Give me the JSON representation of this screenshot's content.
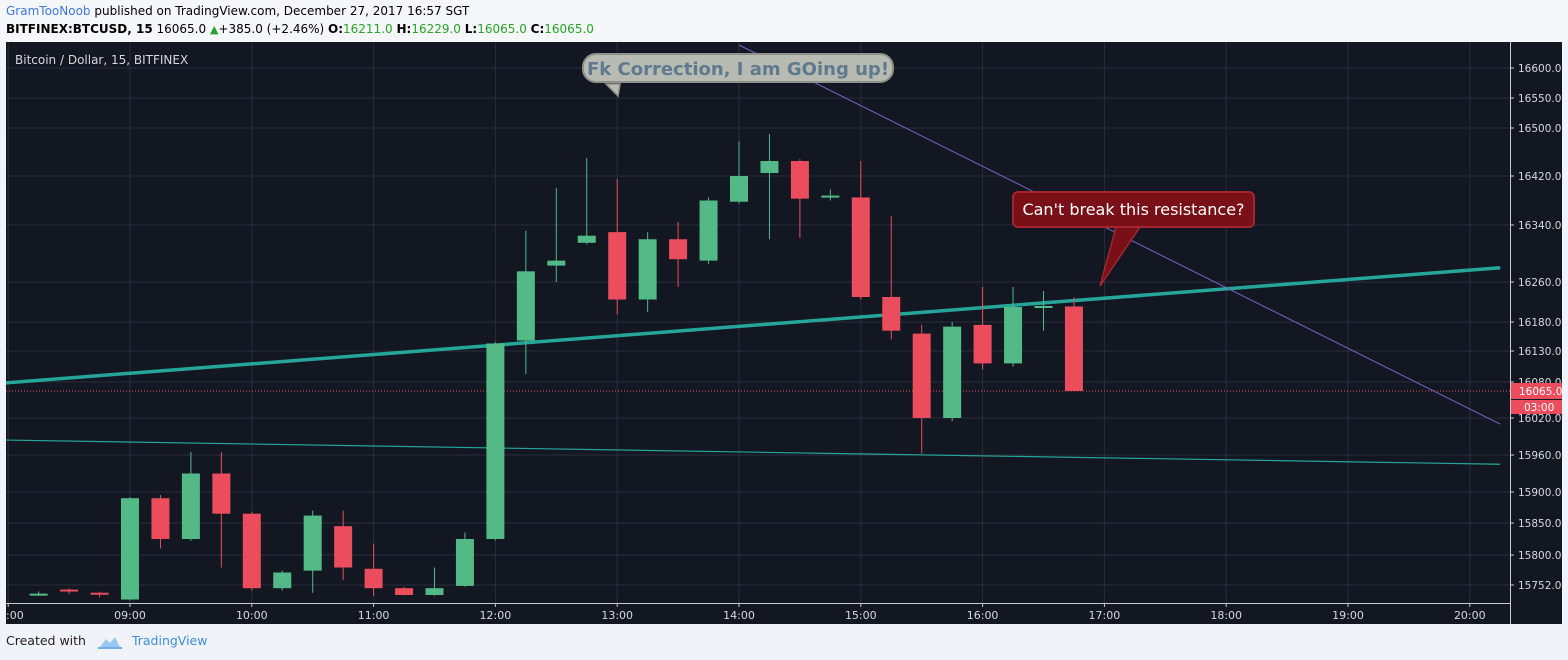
{
  "header": {
    "author": "GramTooNoob",
    "published_text": "published on TradingView.com, December 27, 2017 16:57 SGT",
    "symbol": "BITFINEX:BTCUSD, 15",
    "last": "16065.0",
    "change": "+385.0 (+2.46%)",
    "o_label": "O:",
    "o_val": "16211.0",
    "h_label": "H:",
    "h_val": "16229.0",
    "l_label": "L:",
    "l_val": "16065.0",
    "c_label": "C:",
    "c_val": "16065.0"
  },
  "chart_title": "Bitcoin / Dollar, 15, BITFINEX",
  "annotations": {
    "bubble_top": "Fk Correction, I am GOing up!",
    "bubble_resistance": "Can't break this resistance?"
  },
  "footer": {
    "created_with": "Created with",
    "brand": "TradingView"
  },
  "colors": {
    "background": "#131722",
    "grid": "#2a2e39",
    "up": "#53b987",
    "down": "#eb4d5c",
    "trendline": "#26a69a",
    "diagonal": "#7b61c9",
    "price_line": "#eb4d5c",
    "text": "#d6d8de"
  },
  "chart_data": {
    "type": "candlestick",
    "title": "Bitcoin / Dollar, 15, BITFINEX",
    "interval_minutes": 15,
    "x_ticks": [
      ":00",
      "09:00",
      "10:00",
      "11:00",
      "12:00",
      "13:00",
      "14:00",
      "15:00",
      "16:00",
      "17:00",
      "18:00",
      "19:00",
      "20:00"
    ],
    "y_ticks": [
      15752,
      15800,
      15850,
      15900,
      15960,
      16020,
      16080,
      16130,
      16180,
      16260,
      16340,
      16420,
      16500,
      16550,
      16600
    ],
    "y_tick_labels": [
      "15752.0",
      "15800.0",
      "15850.0",
      "15900.0",
      "15960.0",
      "16020.0",
      "16080.0",
      "16130.0",
      "16180.0",
      "16260.0",
      "16340.0",
      "16420.0",
      "16500.0",
      "16550.0",
      "16600.0"
    ],
    "y_range": [
      15730,
      16640
    ],
    "grid": true,
    "last_price": 16065.0,
    "last_price_label": "16065.0",
    "countdown_label": "03:00",
    "candles": [
      {
        "time": "08:15",
        "o": 15733,
        "h": 15738,
        "l": 15728,
        "c": 15733
      },
      {
        "time": "08:30",
        "o": 15742,
        "h": 15745,
        "l": 15732,
        "c": 15740
      },
      {
        "time": "08:45",
        "o": 15735,
        "h": 15737,
        "l": 15725,
        "c": 15733
      },
      {
        "time": "09:00",
        "o": 15720,
        "h": 15892,
        "l": 15718,
        "c": 15890
      },
      {
        "time": "09:15",
        "o": 15890,
        "h": 15895,
        "l": 15810,
        "c": 15825
      },
      {
        "time": "09:30",
        "o": 15825,
        "h": 15965,
        "l": 15822,
        "c": 15930
      },
      {
        "time": "09:45",
        "o": 15930,
        "h": 15965,
        "l": 15780,
        "c": 15865
      },
      {
        "time": "10:00",
        "o": 15865,
        "h": 15868,
        "l": 15740,
        "c": 15745
      },
      {
        "time": "10:15",
        "o": 15745,
        "h": 15775,
        "l": 15740,
        "c": 15772
      },
      {
        "time": "10:30",
        "o": 15775,
        "h": 15870,
        "l": 15735,
        "c": 15862
      },
      {
        "time": "10:45",
        "o": 15845,
        "h": 15870,
        "l": 15760,
        "c": 15780
      },
      {
        "time": "11:00",
        "o": 15778,
        "h": 15818,
        "l": 15728,
        "c": 15745
      },
      {
        "time": "11:15",
        "o": 15745,
        "h": 15748,
        "l": 15729,
        "c": 15730
      },
      {
        "time": "11:30",
        "o": 15730,
        "h": 15780,
        "l": 15728,
        "c": 15745
      },
      {
        "time": "11:45",
        "o": 15750,
        "h": 15835,
        "l": 15748,
        "c": 15825
      },
      {
        "time": "12:00",
        "o": 15825,
        "h": 16145,
        "l": 15823,
        "c": 16143
      },
      {
        "time": "12:15",
        "o": 16148,
        "h": 16332,
        "l": 16093,
        "c": 16275
      },
      {
        "time": "12:30",
        "o": 16283,
        "h": 16400,
        "l": 16260,
        "c": 16290
      },
      {
        "time": "12:45",
        "o": 16315,
        "h": 16450,
        "l": 16313,
        "c": 16325
      },
      {
        "time": "13:00",
        "o": 16330,
        "h": 16415,
        "l": 16195,
        "c": 16225
      },
      {
        "time": "13:15",
        "o": 16225,
        "h": 16330,
        "l": 16200,
        "c": 16320
      },
      {
        "time": "13:30",
        "o": 16320,
        "h": 16345,
        "l": 16250,
        "c": 16292
      },
      {
        "time": "13:45",
        "o": 16290,
        "h": 16385,
        "l": 16285,
        "c": 16380
      },
      {
        "time": "14:00",
        "o": 16378,
        "h": 16478,
        "l": 16375,
        "c": 16420
      },
      {
        "time": "14:15",
        "o": 16425,
        "h": 16490,
        "l": 16320,
        "c": 16445
      },
      {
        "time": "14:30",
        "o": 16445,
        "h": 16448,
        "l": 16322,
        "c": 16383
      },
      {
        "time": "14:45",
        "o": 16385,
        "h": 16398,
        "l": 16380,
        "c": 16388
      },
      {
        "time": "15:00",
        "o": 16385,
        "h": 16445,
        "l": 16225,
        "c": 16230
      },
      {
        "time": "15:15",
        "o": 16230,
        "h": 16355,
        "l": 16150,
        "c": 16165
      },
      {
        "time": "15:30",
        "o": 16160,
        "h": 16175,
        "l": 15962,
        "c": 16020
      },
      {
        "time": "15:45",
        "o": 16020,
        "h": 16180,
        "l": 16015,
        "c": 16172
      },
      {
        "time": "16:00",
        "o": 16175,
        "h": 16250,
        "l": 16100,
        "c": 16110
      },
      {
        "time": "16:15",
        "o": 16110,
        "h": 16250,
        "l": 16105,
        "c": 16210
      },
      {
        "time": "16:30",
        "o": 16210,
        "h": 16242,
        "l": 16165,
        "c": 16212
      },
      {
        "time": "16:45",
        "o": 16211,
        "h": 16229,
        "l": 16065,
        "c": 16065
      }
    ],
    "lines": [
      {
        "name": "support",
        "from": {
          "time": "07:45",
          "price": 16075
        },
        "to": {
          "time": "20:15",
          "price": 16280
        }
      },
      {
        "name": "lower",
        "from": {
          "time": "07:45",
          "price": 15985
        },
        "to": {
          "time": "20:15",
          "price": 15945
        }
      },
      {
        "name": "diagonal",
        "from": {
          "time": "14:00",
          "price": 16640
        },
        "to": {
          "time": "20:15",
          "price": 16010
        }
      }
    ]
  }
}
